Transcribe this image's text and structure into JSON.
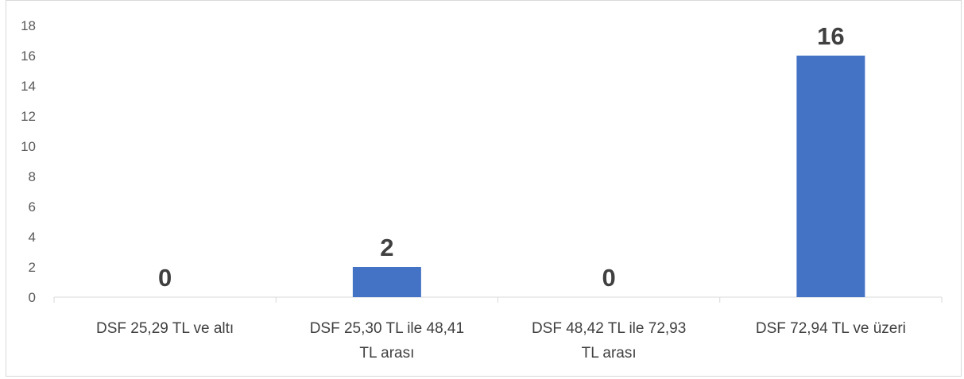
{
  "chart_data": {
    "type": "bar",
    "categories": [
      [
        "DSF 25,29 TL ve altı"
      ],
      [
        "DSF 25,30 TL ile 48,41",
        "TL arası"
      ],
      [
        "DSF 48,42 TL ile 72,93",
        "TL arası"
      ],
      [
        "DSF 72,94 TL ve üzeri"
      ]
    ],
    "values": [
      0,
      2,
      0,
      16
    ],
    "data_labels": [
      "0",
      "2",
      "0",
      "16"
    ],
    "ylim": [
      0,
      18
    ],
    "yticks": [
      0,
      2,
      4,
      6,
      8,
      10,
      12,
      14,
      16,
      18
    ],
    "grid": false,
    "legend": "none",
    "colors": {
      "bar": "#4472C4",
      "axis": "#d9d9d9",
      "text": "#404040",
      "tick_text": "#595959"
    }
  }
}
